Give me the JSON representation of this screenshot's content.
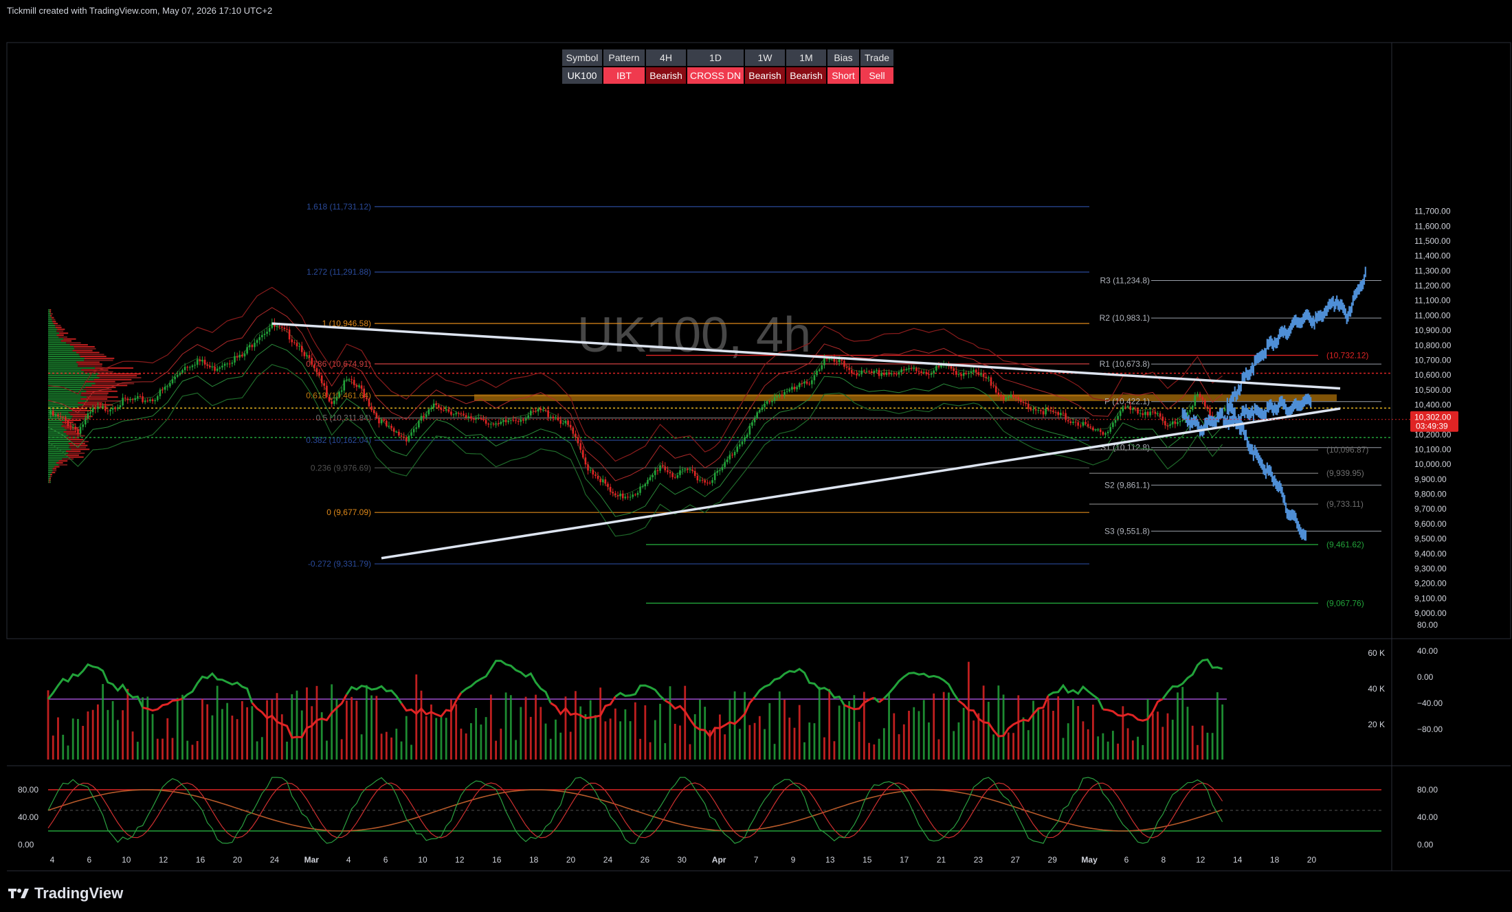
{
  "header": {
    "credit": "Tickmill created with TradingView.com, May 07, 2026 17:10 UTC+2"
  },
  "footer": {
    "brand": "TradingView"
  },
  "colors": {
    "up": "#22a33a",
    "down": "#e02424",
    "blue": "#4f8fd6",
    "fib_blue": "#2a4a9a",
    "orange": "#e08a1a",
    "pivot": "#9aa0aa"
  },
  "watermark": "UK100, 4h",
  "signal_table": {
    "headers": [
      "Symbol",
      "Pattern",
      "4H",
      "1D",
      "1W",
      "1M",
      "Bias",
      "Trade"
    ],
    "values": [
      "UK100",
      "IBT",
      "Bearish",
      "CROSS DN",
      "Bearish",
      "Bearish",
      "Short",
      "Sell"
    ]
  },
  "chart_data": [
    {
      "type": "candlestick",
      "symbol": "UK100",
      "timeframe": "4h",
      "ylim": [
        9000,
        11750
      ],
      "price_axis_labels": [
        "11,700.00",
        "11,600.00",
        "11,500.00",
        "11,400.00",
        "11,300.00",
        "11,200.00",
        "11,100.00",
        "11,000.00",
        "10,900.00",
        "10,800.00",
        "10,700.00",
        "10,600.00",
        "10,500.00",
        "10,400.00",
        "10,300.00",
        "10,200.00",
        "10,100.00",
        "10,000.00",
        "9,900.00",
        "9,800.00",
        "9,700.00",
        "9,600.00",
        "9,500.00",
        "9,400.00",
        "9,300.00",
        "9,200.00",
        "9,100.00",
        "9,000.00"
      ],
      "current_price": {
        "price": "10,302.00",
        "countdown": "03:49:39",
        "value": 10302
      },
      "time_axis_labels": [
        "4",
        "6",
        "10",
        "12",
        "16",
        "20",
        "24",
        "Mar",
        "4",
        "6",
        "10",
        "12",
        "16",
        "18",
        "20",
        "24",
        "26",
        "30",
        "Apr",
        "7",
        "9",
        "13",
        "15",
        "17",
        "21",
        "23",
        "27",
        "29",
        "May",
        "6",
        "8",
        "12",
        "14",
        "18",
        "20"
      ],
      "close_path": [
        [
          0,
          10340
        ],
        [
          6,
          10300
        ],
        [
          12,
          10230
        ],
        [
          18,
          10360
        ],
        [
          24,
          10380
        ],
        [
          30,
          10420
        ],
        [
          36,
          10430
        ],
        [
          42,
          10440
        ],
        [
          48,
          10520
        ],
        [
          54,
          10650
        ],
        [
          60,
          10700
        ],
        [
          66,
          10640
        ],
        [
          72,
          10700
        ],
        [
          78,
          10720
        ],
        [
          84,
          10860
        ],
        [
          90,
          10930
        ],
        [
          96,
          10880
        ],
        [
          102,
          10780
        ],
        [
          108,
          10600
        ],
        [
          114,
          10420
        ],
        [
          120,
          10560
        ],
        [
          126,
          10500
        ],
        [
          132,
          10320
        ],
        [
          138,
          10220
        ],
        [
          144,
          10180
        ],
        [
          150,
          10300
        ],
        [
          156,
          10400
        ],
        [
          162,
          10360
        ],
        [
          168,
          10300
        ],
        [
          174,
          10320
        ],
        [
          180,
          10250
        ],
        [
          186,
          10300
        ],
        [
          192,
          10320
        ],
        [
          198,
          10360
        ],
        [
          204,
          10320
        ],
        [
          210,
          10240
        ],
        [
          216,
          10000
        ],
        [
          222,
          9900
        ],
        [
          228,
          9770
        ],
        [
          234,
          9800
        ],
        [
          240,
          9850
        ],
        [
          246,
          10000
        ],
        [
          252,
          9920
        ],
        [
          258,
          9960
        ],
        [
          264,
          9880
        ],
        [
          270,
          9950
        ],
        [
          276,
          10100
        ],
        [
          282,
          10250
        ],
        [
          288,
          10400
        ],
        [
          294,
          10480
        ],
        [
          300,
          10500
        ],
        [
          306,
          10560
        ],
        [
          312,
          10700
        ],
        [
          318,
          10680
        ],
        [
          324,
          10620
        ],
        [
          330,
          10600
        ],
        [
          336,
          10620
        ],
        [
          342,
          10610
        ],
        [
          348,
          10640
        ],
        [
          354,
          10620
        ],
        [
          360,
          10660
        ],
        [
          366,
          10620
        ],
        [
          372,
          10610
        ],
        [
          378,
          10560
        ],
        [
          384,
          10460
        ],
        [
          390,
          10420
        ],
        [
          396,
          10380
        ],
        [
          402,
          10350
        ],
        [
          408,
          10320
        ],
        [
          414,
          10280
        ],
        [
          420,
          10220
        ],
        [
          426,
          10230
        ],
        [
          432,
          10380
        ],
        [
          438,
          10350
        ],
        [
          444,
          10360
        ],
        [
          450,
          10240
        ],
        [
          456,
          10320
        ],
        [
          462,
          10460
        ],
        [
          468,
          10300
        ],
        [
          473,
          10380
        ]
      ],
      "fibonacci": [
        {
          "label": "1.618 (11,731.12)",
          "value": 11731.12,
          "color": "#2a4a9a"
        },
        {
          "label": "1.272 (11,291.88)",
          "value": 11291.88,
          "color": "#2a4a9a"
        },
        {
          "label": "1 (10,946.58)",
          "value": 10946.58,
          "color": "#e08a1a"
        },
        {
          "label": "0.786 (10,674.91)",
          "value": 10674.91,
          "color": "#d04040"
        },
        {
          "label": "0.618 (10,461.64)",
          "value": 10461.64,
          "color": "#c07a10"
        },
        {
          "label": "0.5 (10,311.84)",
          "value": 10311.84,
          "color": "#707070"
        },
        {
          "label": "0.382 (10,162.04)",
          "value": 10162.04,
          "color": "#2a4a9a"
        },
        {
          "label": "0.236 (9,976.69)",
          "value": 9976.69,
          "color": "#505050"
        },
        {
          "label": "0 (9,677.09)",
          "value": 9677.09,
          "color": "#e08a1a"
        },
        {
          "label": "-0.272 (9,331.79)",
          "value": 9331.79,
          "color": "#2a4a9a"
        }
      ],
      "pivots": [
        {
          "label": "R3 (11,234.8)",
          "value": 11234.8
        },
        {
          "label": "R2 (10,983.1)",
          "value": 10983.1
        },
        {
          "label": "R1 (10,673.8)",
          "value": 10673.8
        },
        {
          "label": "P (10,422.1)",
          "value": 10422.1
        },
        {
          "label": "S1 (10,112.8)",
          "value": 10112.8
        },
        {
          "label": "S2 (9,861.1)",
          "value": 9861.1
        },
        {
          "label": "S3 (9,551.8)",
          "value": 9551.8
        }
      ],
      "right_levels": [
        {
          "label": "(10,732.12)",
          "value": 10732.12,
          "color": "#e02424"
        },
        {
          "label": "(10,096.87)",
          "value": 10096.87,
          "color": "#707070"
        },
        {
          "label": "(9,939.95)",
          "value": 9939.95,
          "color": "#707070"
        },
        {
          "label": "(9,733.11)",
          "value": 9733.11,
          "color": "#707070"
        },
        {
          "label": "(9,461.62)",
          "value": 9461.62,
          "color": "#22a33a"
        },
        {
          "label": "(9,067.76)",
          "value": 9067.76,
          "color": "#22a33a"
        }
      ],
      "projection_up": [
        [
          474,
          10380
        ],
        [
          478,
          10500
        ],
        [
          482,
          10600
        ],
        [
          486,
          10700
        ],
        [
          490,
          10780
        ],
        [
          494,
          10840
        ],
        [
          498,
          10900
        ],
        [
          502,
          10950
        ],
        [
          506,
          11000
        ],
        [
          510,
          10960
        ],
        [
          514,
          11050
        ],
        [
          518,
          11100
        ],
        [
          522,
          11000
        ],
        [
          526,
          11150
        ],
        [
          530,
          11280
        ]
      ],
      "projection_down": [
        [
          474,
          10420
        ],
        [
          478,
          10300
        ],
        [
          482,
          10150
        ],
        [
          486,
          10050
        ],
        [
          490,
          9950
        ],
        [
          494,
          9880
        ],
        [
          498,
          9700
        ],
        [
          502,
          9600
        ],
        [
          506,
          9500
        ]
      ],
      "projection_consolidation": [
        [
          456,
          10330
        ],
        [
          460,
          10280
        ],
        [
          464,
          10240
        ],
        [
          468,
          10300
        ],
        [
          472,
          10320
        ],
        [
          476,
          10280
        ],
        [
          480,
          10330
        ],
        [
          484,
          10360
        ],
        [
          488,
          10340
        ],
        [
          492,
          10380
        ],
        [
          496,
          10400
        ],
        [
          500,
          10360
        ],
        [
          504,
          10420
        ],
        [
          508,
          10440
        ]
      ]
    },
    {
      "type": "histogram_line",
      "name": "volume_oscillator",
      "left_axis_labels": [
        "60 K",
        "40 K",
        "20 K"
      ],
      "right_axis_labels": [
        "80.00",
        "40.00",
        "0.00",
        "−40.00",
        "−80.00"
      ],
      "ylim": [
        -90,
        90
      ]
    },
    {
      "type": "line",
      "name": "stochastic",
      "axis_labels": [
        "80.00",
        "40.00",
        "0.00"
      ],
      "ylim": [
        0,
        100
      ],
      "levels": [
        80,
        20
      ]
    }
  ]
}
